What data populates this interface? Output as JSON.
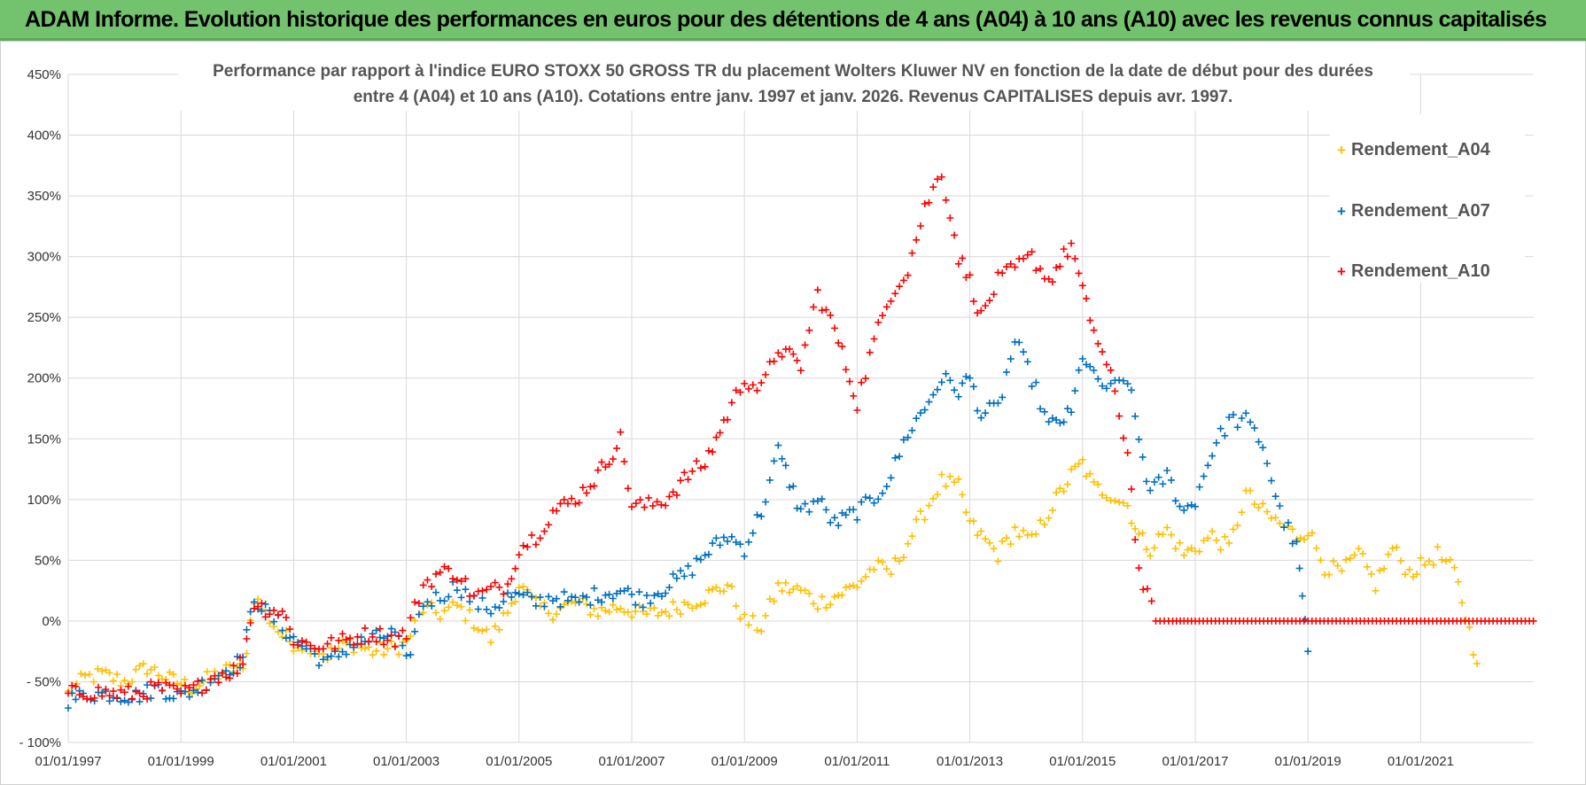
{
  "header": {
    "title": "ADAM Informe. Evolution historique des performances en euros pour des détentions de 4 ans (A04) à 10 ans (A10) avec les revenus connus capitalisés"
  },
  "colors": {
    "A04": "#ffc000",
    "A07": "#0070c0",
    "A10": "#ff0000",
    "header_bg": "#73c26d"
  },
  "chart_data": {
    "type": "scatter",
    "title_line1": "Performance par rapport à l'indice EURO STOXX 50 GROSS TR  du placement Wolters Kluwer NV en fonction de la date de début pour des durées",
    "title_line2": "entre 4 (A04) et 10 ans (A10).  Cotations entre janv. 1997 et janv. 2026. Revenus CAPITALISES depuis avr. 1997.",
    "xlabel": "",
    "ylabel": "",
    "ylim": [
      -100,
      450
    ],
    "xlim": [
      1997.0,
      2023.1
    ],
    "y_ticks": [
      -100,
      -50,
      0,
      50,
      100,
      150,
      200,
      250,
      300,
      350,
      400,
      450
    ],
    "y_tick_labels": [
      "- 100%",
      "- 50%",
      "0%",
      "50%",
      "100%",
      "150%",
      "200%",
      "250%",
      "300%",
      "350%",
      "400%",
      "450%"
    ],
    "x_tick_labels": [
      "01/01/1997",
      "01/01/1999",
      "01/01/2001",
      "01/01/2003",
      "01/01/2005",
      "01/01/2007",
      "01/01/2009",
      "01/01/2011",
      "01/01/2013",
      "01/01/2015",
      "01/01/2017",
      "01/01/2019",
      "01/01/2021"
    ],
    "legend": [
      "Rendement_A04",
      "Rendement_A07",
      "Rendement_A10"
    ],
    "series": [
      {
        "name": "Rendement_A04",
        "x": [
          1997.0,
          1997.3,
          1997.6,
          1998.0,
          1998.4,
          1998.8,
          1999.2,
          1999.6,
          2000.0,
          2000.1,
          2000.3,
          2000.5,
          2000.8,
          2001.0,
          2001.3,
          2001.6,
          2002.0,
          2002.4,
          2002.8,
          2003.0,
          2003.3,
          2003.6,
          2003.9,
          2004.2,
          2004.5,
          2004.8,
          2005.0,
          2005.3,
          2005.6,
          2006.0,
          2006.4,
          2006.8,
          2007.2,
          2007.6,
          2008.0,
          2008.3,
          2008.7,
          2009.0,
          2009.3,
          2009.6,
          2010.0,
          2010.3,
          2010.6,
          2011.0,
          2011.3,
          2011.6,
          2011.9,
          2012.2,
          2012.5,
          2012.8,
          2013.0,
          2013.2,
          2013.5,
          2013.8,
          2014.1,
          2014.4,
          2014.8,
          2015.0,
          2015.2,
          2015.5,
          2015.8,
          2016.0,
          2016.2,
          2016.5,
          2016.8,
          2017.0,
          2017.3,
          2017.6,
          2017.9,
          2018.2,
          2018.5,
          2018.8,
          2019.0,
          2019.3,
          2019.6,
          2019.9,
          2020.2,
          2020.5,
          2020.8,
          2021.0,
          2021.3,
          2021.6,
          2021.8,
          2022.0
        ],
        "y": [
          -60,
          -47,
          -44,
          -50,
          -38,
          -48,
          -55,
          -45,
          -38,
          -42,
          20,
          6,
          -12,
          -18,
          -20,
          -28,
          -18,
          -25,
          -22,
          -18,
          10,
          6,
          12,
          0,
          -15,
          8,
          30,
          12,
          8,
          15,
          8,
          12,
          5,
          8,
          15,
          20,
          30,
          0,
          -5,
          28,
          25,
          15,
          20,
          30,
          45,
          40,
          65,
          90,
          115,
          110,
          80,
          70,
          55,
          75,
          65,
          90,
          120,
          130,
          110,
          105,
          95,
          70,
          60,
          75,
          55,
          60,
          70,
          60,
          105,
          90,
          80,
          70,
          75,
          45,
          40,
          55,
          30,
          60,
          40,
          45,
          55,
          40,
          5,
          -35
        ],
        "marker_size": 4
      },
      {
        "name": "Rendement_A07",
        "x": [
          1997.0,
          1997.4,
          1997.8,
          1998.2,
          1998.6,
          1999.0,
          1999.3,
          1999.6,
          2000.0,
          2000.1,
          2000.3,
          2000.5,
          2000.8,
          2001.0,
          2001.3,
          2001.6,
          2002.0,
          2002.4,
          2002.8,
          2003.0,
          2003.3,
          2003.6,
          2003.9,
          2004.2,
          2004.5,
          2004.8,
          2005.0,
          2005.3,
          2005.6,
          2006.0,
          2006.4,
          2006.8,
          2007.2,
          2007.6,
          2008.0,
          2008.3,
          2008.7,
          2009.0,
          2009.3,
          2009.6,
          2010.0,
          2010.3,
          2010.6,
          2011.0,
          2011.3,
          2011.6,
          2011.9,
          2012.2,
          2012.5,
          2012.8,
          2013.0,
          2013.2,
          2013.5,
          2013.8,
          2014.1,
          2014.4,
          2014.8,
          2015.0,
          2015.2,
          2015.5,
          2015.8,
          2016.0,
          2016.2,
          2016.5,
          2016.8,
          2017.0,
          2017.3,
          2017.6,
          2017.9,
          2018.2,
          2018.5,
          2018.8,
          2018.9,
          2019.0
        ],
        "y": [
          -65,
          -60,
          -60,
          -62,
          -55,
          -62,
          -55,
          -45,
          -35,
          -30,
          20,
          8,
          -5,
          -15,
          -25,
          -35,
          -20,
          -15,
          -10,
          -35,
          15,
          20,
          30,
          15,
          10,
          20,
          20,
          15,
          20,
          15,
          22,
          25,
          18,
          28,
          40,
          55,
          70,
          60,
          90,
          140,
          90,
          100,
          80,
          90,
          100,
          120,
          155,
          175,
          200,
          190,
          200,
          170,
          175,
          230,
          200,
          160,
          170,
          220,
          200,
          190,
          200,
          150,
          105,
          120,
          90,
          100,
          140,
          165,
          165,
          145,
          90,
          60,
          20,
          -25
        ],
        "marker_size": 4
      },
      {
        "name": "Rendement_A10",
        "x": [
          1997.0,
          1997.4,
          1997.8,
          1998.2,
          1998.6,
          1999.0,
          1999.3,
          1999.6,
          2000.0,
          2000.1,
          2000.3,
          2000.5,
          2000.8,
          2001.0,
          2001.3,
          2001.6,
          2002.0,
          2002.4,
          2002.8,
          2003.0,
          2003.3,
          2003.6,
          2003.9,
          2004.2,
          2004.5,
          2004.8,
          2005.0,
          2005.3,
          2005.6,
          2006.0,
          2006.4,
          2006.8,
          2007.0,
          2007.3,
          2007.6,
          2008.0,
          2008.3,
          2008.7,
          2009.0,
          2009.3,
          2009.6,
          2010.0,
          2010.3,
          2010.6,
          2011.0,
          2011.3,
          2011.6,
          2011.9,
          2012.2,
          2012.5,
          2012.8,
          2013.0,
          2013.2,
          2013.5,
          2013.8,
          2014.1,
          2014.4,
          2014.8,
          2015.0,
          2015.2,
          2015.5,
          2015.8,
          2016.0,
          2016.3,
          2016.6,
          2017.0,
          2017.5,
          2018.0,
          2018.5,
          2019.0,
          2019.5,
          2020.0,
          2020.5,
          2021.0,
          2021.5,
          2022.0,
          2022.5,
          2023.0
        ],
        "y": [
          -60,
          -58,
          -60,
          -60,
          -55,
          -60,
          -55,
          -45,
          -40,
          -30,
          15,
          10,
          8,
          -15,
          -20,
          -20,
          -15,
          -10,
          -15,
          -10,
          30,
          40,
          40,
          20,
          25,
          30,
          60,
          70,
          90,
          100,
          120,
          150,
          95,
          95,
          100,
          120,
          130,
          170,
          200,
          190,
          225,
          210,
          270,
          240,
          180,
          230,
          270,
          290,
          340,
          370,
          300,
          280,
          250,
          280,
          290,
          300,
          280,
          310,
          270,
          240,
          200,
          140,
          40,
          0,
          0,
          0,
          0,
          0,
          0,
          0,
          0,
          0,
          0,
          0,
          0,
          0,
          0,
          0
        ],
        "marker_size": 4
      }
    ]
  }
}
